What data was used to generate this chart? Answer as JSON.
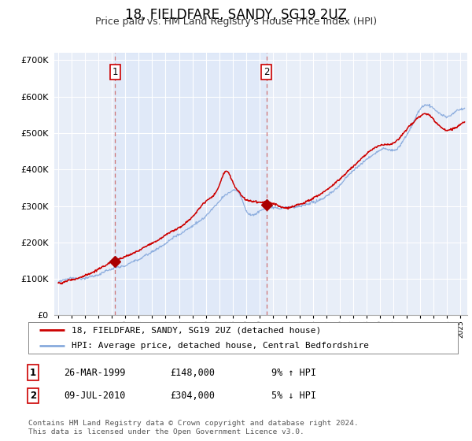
{
  "title": "18, FIELDFARE, SANDY, SG19 2UZ",
  "subtitle": "Price paid vs. HM Land Registry's House Price Index (HPI)",
  "title_fontsize": 12,
  "subtitle_fontsize": 9.5,
  "ylim": [
    0,
    720000
  ],
  "yticks": [
    0,
    100000,
    200000,
    300000,
    400000,
    500000,
    600000,
    700000
  ],
  "ytick_labels": [
    "£0",
    "£100K",
    "£200K",
    "£300K",
    "£400K",
    "£500K",
    "£600K",
    "£700K"
  ],
  "background_color": "#ffffff",
  "plot_bg_color": "#e8eef8",
  "grid_color": "#ffffff",
  "sale1_date": 1999.23,
  "sale1_price": 148000,
  "sale2_date": 2010.52,
  "sale2_price": 304000,
  "red_line_color": "#cc0000",
  "blue_line_color": "#88aadd",
  "marker_color": "#aa0000",
  "dashed_line_color": "#cc6666",
  "legend_label_red": "18, FIELDFARE, SANDY, SG19 2UZ (detached house)",
  "legend_label_blue": "HPI: Average price, detached house, Central Bedfordshire",
  "table_row1": [
    "1",
    "26-MAR-1999",
    "£148,000",
    "9% ↑ HPI"
  ],
  "table_row2": [
    "2",
    "09-JUL-2010",
    "£304,000",
    "5% ↓ HPI"
  ],
  "footnote": "Contains HM Land Registry data © Crown copyright and database right 2024.\nThis data is licensed under the Open Government Licence v3.0.",
  "xmin": 1994.7,
  "xmax": 2025.5
}
